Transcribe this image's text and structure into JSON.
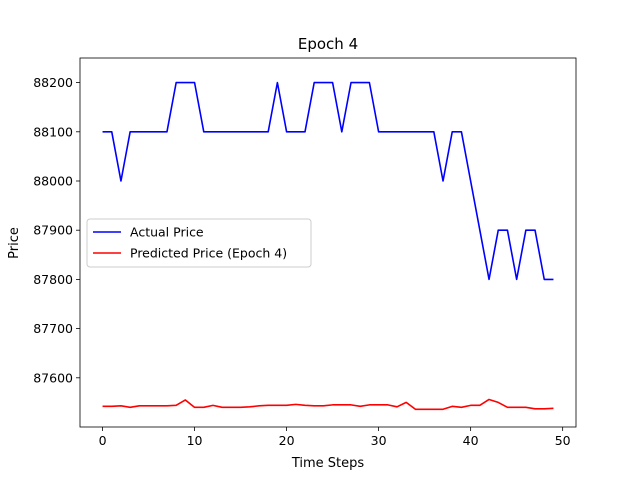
{
  "chart_data": {
    "type": "line",
    "title": "Epoch 4",
    "xlabel": "Time Steps",
    "ylabel": "Price",
    "xlim": [
      -2.45,
      51.45
    ],
    "ylim": [
      87500,
      88250
    ],
    "xticks": [
      0,
      10,
      20,
      30,
      40,
      50
    ],
    "yticks": [
      87600,
      87700,
      87800,
      87900,
      88000,
      88100,
      88200
    ],
    "grid": false,
    "legend_position": "center-left",
    "series": [
      {
        "name": "Actual Price",
        "color": "#0000ff",
        "x": [
          0,
          1,
          2,
          3,
          4,
          5,
          6,
          7,
          8,
          9,
          10,
          11,
          12,
          13,
          14,
          15,
          16,
          17,
          18,
          19,
          20,
          21,
          22,
          23,
          24,
          25,
          26,
          27,
          28,
          29,
          30,
          31,
          32,
          33,
          34,
          35,
          36,
          37,
          38,
          39,
          40,
          41,
          42,
          43,
          44,
          45,
          46,
          47,
          48,
          49
        ],
        "values": [
          88100,
          88100,
          88000,
          88100,
          88100,
          88100,
          88100,
          88100,
          88200,
          88200,
          88200,
          88100,
          88100,
          88100,
          88100,
          88100,
          88100,
          88100,
          88100,
          88200,
          88100,
          88100,
          88100,
          88200,
          88200,
          88200,
          88100,
          88200,
          88200,
          88200,
          88100,
          88100,
          88100,
          88100,
          88100,
          88100,
          88100,
          88000,
          88100,
          88100,
          88000,
          87900,
          87800,
          87900,
          87900,
          87800,
          87900,
          87900,
          87800,
          87800
        ]
      },
      {
        "name": "Predicted Price (Epoch 4)",
        "color": "#ff0000",
        "x": [
          0,
          1,
          2,
          3,
          4,
          5,
          6,
          7,
          8,
          9,
          10,
          11,
          12,
          13,
          14,
          15,
          16,
          17,
          18,
          19,
          20,
          21,
          22,
          23,
          24,
          25,
          26,
          27,
          28,
          29,
          30,
          31,
          32,
          33,
          34,
          35,
          36,
          37,
          38,
          39,
          40,
          41,
          42,
          43,
          44,
          45,
          46,
          47,
          48,
          49
        ],
        "values": [
          87542,
          87542,
          87543,
          87540,
          87543,
          87543,
          87543,
          87543,
          87544,
          87555,
          87540,
          87540,
          87544,
          87540,
          87540,
          87540,
          87541,
          87543,
          87544,
          87544,
          87544,
          87546,
          87544,
          87543,
          87543,
          87545,
          87545,
          87545,
          87542,
          87545,
          87545,
          87545,
          87541,
          87550,
          87536,
          87536,
          87536,
          87536,
          87542,
          87540,
          87544,
          87544,
          87556,
          87550,
          87540,
          87540,
          87540,
          87537,
          87537,
          87538
        ]
      }
    ]
  }
}
